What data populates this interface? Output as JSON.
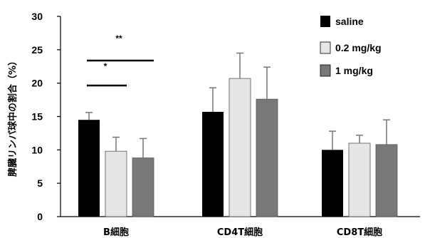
{
  "chart_data": {
    "type": "bar",
    "ylabel": "脾臓リンパ球中の割合（%）",
    "xlabel": "",
    "ylim": [
      0,
      30
    ],
    "yticks": [
      0,
      5,
      10,
      15,
      20,
      25,
      30
    ],
    "categories": [
      "B細胞",
      "CD4T細胞",
      "CD8T細胞"
    ],
    "series": [
      {
        "name": "saline",
        "color": "#000000",
        "values": [
          14.5,
          15.7,
          10.0
        ],
        "errors": [
          1.1,
          3.6,
          2.8
        ]
      },
      {
        "name": "0.2 mg/kg",
        "color": "#e6e6e6",
        "values": [
          9.8,
          20.7,
          11.0
        ],
        "errors": [
          2.1,
          3.8,
          1.2
        ]
      },
      {
        "name": "1 mg/kg",
        "color": "#787878",
        "values": [
          8.8,
          17.6,
          10.8
        ],
        "errors": [
          2.9,
          4.8,
          3.7
        ]
      }
    ],
    "legend": {
      "position": "top-right"
    },
    "annotations": [
      {
        "label": "**",
        "category": "B細胞",
        "from_series": 0,
        "to_series": 2
      },
      {
        "label": "*",
        "category": "B細胞",
        "from_series": 0,
        "to_series": 1
      }
    ],
    "grid": false
  }
}
